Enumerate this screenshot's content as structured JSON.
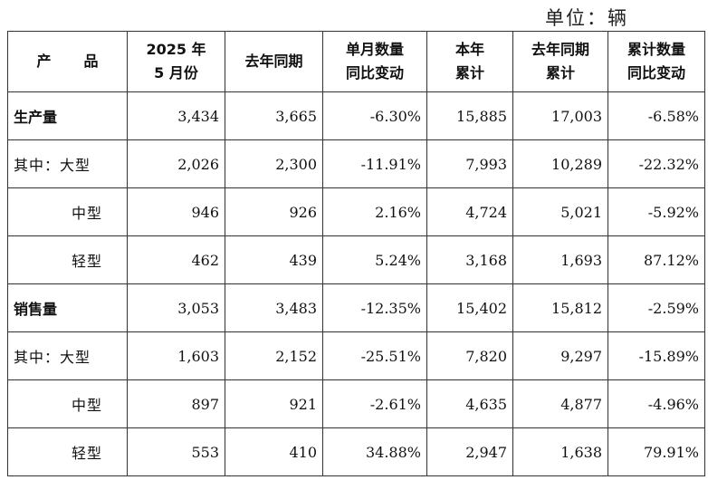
{
  "unit_label": "单位：辆",
  "header": {
    "product_a": "产",
    "product_b": "品",
    "col1": [
      "2025 年",
      "5 月份"
    ],
    "col2": [
      "去年同期"
    ],
    "col3": [
      "单月数量",
      "同比变动"
    ],
    "col4": [
      "本年",
      "累计"
    ],
    "col5": [
      "去年同期",
      "累计"
    ],
    "col6": [
      "累计数量",
      "同比变动"
    ]
  },
  "rows": [
    {
      "label": "生产量",
      "type": "cat",
      "values": [
        "3,434",
        "3,665",
        "-6.30%",
        "15,885",
        "17,003",
        "-6.58%"
      ]
    },
    {
      "label": "其中：大型",
      "type": "first",
      "values": [
        "2,026",
        "2,300",
        "-11.91%",
        "7,993",
        "10,289",
        "-22.32%"
      ]
    },
    {
      "label": "中型",
      "type": "sub",
      "values": [
        "946",
        "926",
        "2.16%",
        "4,724",
        "5,021",
        "-5.92%"
      ]
    },
    {
      "label": "轻型",
      "type": "sub",
      "values": [
        "462",
        "439",
        "5.24%",
        "3,168",
        "1,693",
        "87.12%"
      ]
    },
    {
      "label": "销售量",
      "type": "cat",
      "values": [
        "3,053",
        "3,483",
        "-12.35%",
        "15,402",
        "15,812",
        "-2.59%"
      ]
    },
    {
      "label": "其中：大型",
      "type": "first",
      "values": [
        "1,603",
        "2,152",
        "-25.51%",
        "7,820",
        "9,297",
        "-15.89%"
      ]
    },
    {
      "label": "中型",
      "type": "sub",
      "values": [
        "897",
        "921",
        "-2.61%",
        "4,635",
        "4,877",
        "-4.96%"
      ]
    },
    {
      "label": "轻型",
      "type": "sub",
      "values": [
        "553",
        "410",
        "34.88%",
        "2,947",
        "1,638",
        "79.91%"
      ]
    }
  ]
}
